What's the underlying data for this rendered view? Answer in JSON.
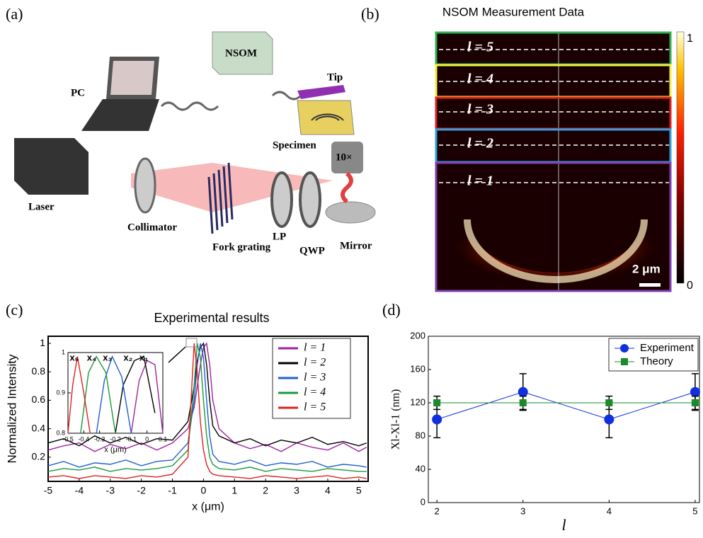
{
  "panel_labels": [
    "(a)",
    "(b)",
    "(c)",
    "(d)"
  ],
  "setup": {
    "labels": [
      "PC",
      "NSOM",
      "Tip",
      "Specimen",
      "10×",
      "Laser",
      "Collimator",
      "Fork grating",
      "LP",
      "QWP",
      "Mirror"
    ]
  },
  "nsom": {
    "title": "NSOM Measurement Data",
    "rows": [
      "l = 5",
      "l = 4",
      "l = 3",
      "l = 2",
      "l = 1"
    ],
    "colorbar_ticks": [
      1,
      0
    ],
    "scale_bar": "2 μm"
  },
  "chart_data": [
    {
      "type": "line",
      "title": "Experimental results",
      "xlabel": "x (μm)",
      "ylabel": "Normalized Intensity",
      "x": [
        -5,
        -4.5,
        -4,
        -3.5,
        -3,
        -2.5,
        -2,
        -1.5,
        -1,
        -0.5,
        -0.3,
        -0.2,
        -0.1,
        0,
        0.1,
        0.2,
        0.3,
        0.5,
        1,
        1.5,
        2,
        2.5,
        3,
        3.5,
        4,
        4.5,
        5,
        5.25
      ],
      "series": [
        {
          "name": "l = 1",
          "color": "#a020a0",
          "values": [
            0.25,
            0.28,
            0.3,
            0.24,
            0.29,
            0.26,
            0.3,
            0.25,
            0.3,
            0.4,
            0.55,
            0.7,
            0.85,
            0.97,
            1,
            0.85,
            0.6,
            0.4,
            0.3,
            0.26,
            0.29,
            0.24,
            0.3,
            0.27,
            0.25,
            0.3,
            0.24,
            0.27
          ]
        },
        {
          "name": "l = 2",
          "color": "#000000",
          "values": [
            0.3,
            0.33,
            0.28,
            0.35,
            0.3,
            0.34,
            0.29,
            0.33,
            0.32,
            0.45,
            0.7,
            0.88,
            0.97,
            1,
            0.85,
            0.6,
            0.42,
            0.35,
            0.3,
            0.33,
            0.28,
            0.32,
            0.3,
            0.34,
            0.29,
            0.31,
            0.28,
            0.3
          ]
        },
        {
          "name": "l = 3",
          "color": "#1f5fd0",
          "values": [
            0.14,
            0.17,
            0.13,
            0.16,
            0.15,
            0.18,
            0.14,
            0.17,
            0.18,
            0.3,
            0.6,
            0.85,
            1,
            0.9,
            0.6,
            0.35,
            0.22,
            0.17,
            0.15,
            0.18,
            0.14,
            0.16,
            0.15,
            0.17,
            0.13,
            0.15,
            0.14,
            0.13
          ]
        },
        {
          "name": "l = 4",
          "color": "#1a9a3a",
          "values": [
            0.1,
            0.12,
            0.11,
            0.13,
            0.1,
            0.12,
            0.11,
            0.12,
            0.14,
            0.25,
            0.7,
            1,
            0.9,
            0.6,
            0.35,
            0.2,
            0.15,
            0.12,
            0.11,
            0.13,
            0.1,
            0.12,
            0.11,
            0.1,
            0.12,
            0.11,
            0.1,
            0.1
          ]
        },
        {
          "name": "l = 5",
          "color": "#e02020",
          "values": [
            0.06,
            0.07,
            0.05,
            0.07,
            0.06,
            0.05,
            0.07,
            0.06,
            0.08,
            0.2,
            1,
            0.8,
            0.45,
            0.25,
            0.15,
            0.1,
            0.08,
            0.07,
            0.06,
            0.05,
            0.07,
            0.06,
            0.05,
            0.06,
            0.07,
            0.05,
            0.06,
            0.05
          ]
        }
      ],
      "xlim": [
        -5,
        5.3
      ],
      "xticks": [
        -5,
        -4,
        -3,
        -2,
        -1,
        0,
        1,
        2,
        3,
        4,
        5
      ],
      "ylim": [
        0.03,
        1.05
      ],
      "yticks": [
        0.2,
        0.4,
        0.6,
        0.8,
        1
      ],
      "legend": "upper right"
    },
    {
      "type": "line",
      "xlabel": "x (μm)",
      "annotations": [
        "x₅",
        "x₄",
        "x₃",
        "x₂",
        "x₁"
      ],
      "series": [
        {
          "color": "#a020a0",
          "x": [
            -0.1,
            -0.05,
            0,
            0.05,
            0.1
          ],
          "values": [
            0.8,
            0.93,
            0.98,
            0.97,
            0.8
          ]
        },
        {
          "color": "#000000",
          "x": [
            -0.2,
            -0.15,
            -0.08,
            -0.02,
            0.05
          ],
          "values": [
            0.8,
            0.92,
            0.98,
            0.99,
            0.85
          ]
        },
        {
          "color": "#1f5fd0",
          "x": [
            -0.32,
            -0.27,
            -0.22,
            -0.16,
            -0.1
          ],
          "values": [
            0.8,
            0.93,
            0.99,
            0.94,
            0.8
          ]
        },
        {
          "color": "#1a9a3a",
          "x": [
            -0.42,
            -0.37,
            -0.32,
            -0.26,
            -0.2
          ],
          "values": [
            0.8,
            0.95,
            0.99,
            0.95,
            0.8
          ]
        },
        {
          "color": "#e02020",
          "x": [
            -0.5,
            -0.47,
            -0.44,
            -0.4,
            -0.36
          ],
          "values": [
            0.8,
            0.92,
            0.99,
            0.9,
            0.8
          ]
        }
      ],
      "xlim": [
        -0.5,
        0.1
      ],
      "xticks": [
        -0.5,
        -0.4,
        -0.3,
        -0.2,
        -0.1,
        0,
        0.1
      ],
      "ylim": [
        0.8,
        1
      ],
      "yticks": [
        0.8,
        0.9,
        1
      ]
    },
    {
      "type": "line",
      "xlabel": "l",
      "ylabel": "Xl-Xl-1 (nm)",
      "x": [
        2,
        3,
        4,
        5
      ],
      "series": [
        {
          "name": "Experiment",
          "color": "#1030e0",
          "marker": "circle",
          "values": [
            100,
            133,
            100,
            133
          ],
          "errors": [
            22,
            22,
            22,
            22
          ]
        },
        {
          "name": "Theory",
          "color": "#1a8a2a",
          "marker": "square",
          "values": [
            120,
            120,
            120,
            120
          ],
          "errors": [
            8,
            8,
            8,
            8
          ]
        }
      ],
      "xlim": [
        1.9,
        5.05
      ],
      "xticks": [
        2,
        3,
        4,
        5
      ],
      "ylim": [
        0,
        200
      ],
      "yticks": [
        0,
        40,
        80,
        120,
        160,
        200
      ],
      "legend": "upper right"
    }
  ]
}
